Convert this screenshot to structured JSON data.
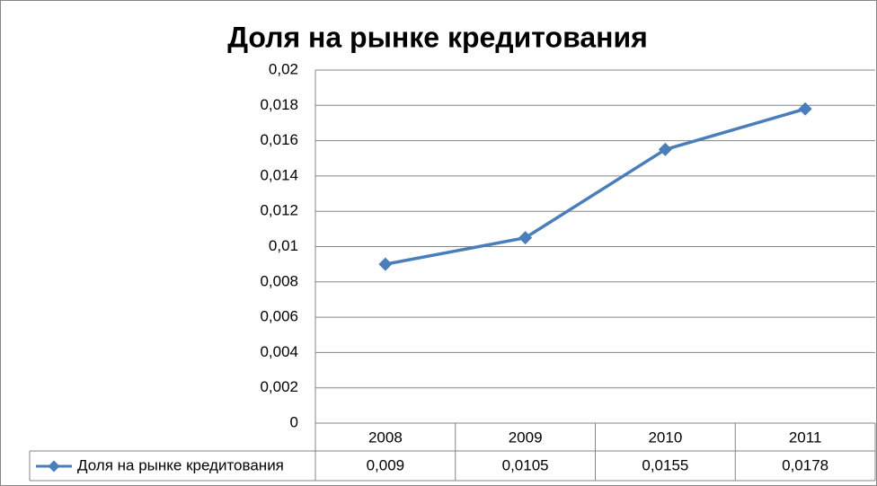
{
  "chart_data": {
    "type": "line",
    "title": "Доля на рынке кредитования",
    "categories": [
      "2008",
      "2009",
      "2010",
      "2011"
    ],
    "series": [
      {
        "name": "Доля на рынке кредитования",
        "color": "#4a7ebb",
        "values": [
          0.009,
          0.0105,
          0.0155,
          0.0178
        ],
        "value_labels": [
          "0,009",
          "0,0105",
          "0,0155",
          "0,0178"
        ]
      }
    ],
    "ylim": [
      0,
      0.02
    ],
    "yticks": [
      0,
      {
        "value": 0.002,
        "label": "0,002"
      },
      {
        "value": 0.004,
        "label": "0,004"
      },
      {
        "value": 0.006,
        "label": "0,006"
      },
      {
        "value": 0.008,
        "label": "0,008"
      },
      {
        "value": 0.01,
        "label": "0,01"
      },
      {
        "value": 0.012,
        "label": "0,012"
      },
      {
        "value": 0.014,
        "label": "0,014"
      },
      {
        "value": 0.016,
        "label": "0,016"
      },
      {
        "value": 0.018,
        "label": "0,018"
      },
      {
        "value": 0.02,
        "label": "0,02"
      }
    ],
    "grid": true,
    "data_table": true
  }
}
